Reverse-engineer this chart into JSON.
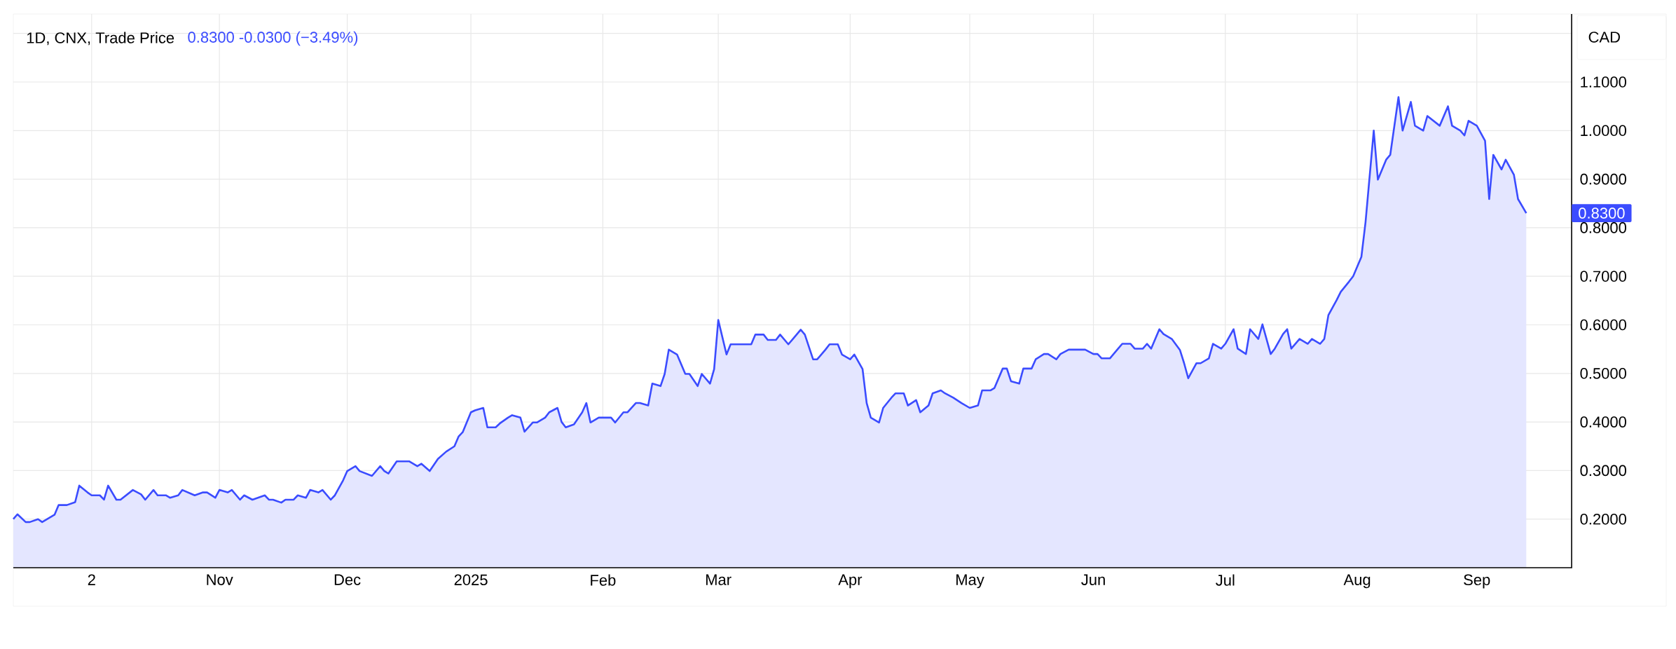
{
  "chart_data": {
    "type": "area",
    "title": "1D, CNX, Trade Price",
    "subtitle": "0.8300  -0.0300 (−3.49%)",
    "annotations": [
      "CAD",
      "0.8300"
    ],
    "x": [
      "2024-09-12",
      "2024-09-13",
      "2024-09-15",
      "2024-09-16",
      "2024-09-18",
      "2024-09-19",
      "2024-09-22",
      "2024-09-23",
      "2024-09-25",
      "2024-09-27",
      "2024-09-28",
      "2024-09-30",
      "2024-10-01",
      "2024-10-03",
      "2024-10-04",
      "2024-10-05",
      "2024-10-07",
      "2024-10-08",
      "2024-10-11",
      "2024-10-13",
      "2024-10-14",
      "2024-10-16",
      "2024-10-17",
      "2024-10-19",
      "2024-10-20",
      "2024-10-22",
      "2024-10-23",
      "2024-10-26",
      "2024-10-28",
      "2024-10-29",
      "2024-10-31",
      "2024-11-01",
      "2024-11-03",
      "2024-11-04",
      "2024-11-06",
      "2024-11-07",
      "2024-11-09",
      "2024-11-12",
      "2024-11-13",
      "2024-11-14",
      "2024-11-16",
      "2024-11-17",
      "2024-11-19",
      "2024-11-20",
      "2024-11-22",
      "2024-11-23",
      "2024-11-25",
      "2024-11-26",
      "2024-11-28",
      "2024-11-29",
      "2024-12-01",
      "2024-12-02",
      "2024-12-04",
      "2024-12-05",
      "2024-12-08",
      "2024-12-10",
      "2024-12-11",
      "2024-12-12",
      "2024-12-14",
      "2024-12-17",
      "2024-12-19",
      "2024-12-20",
      "2024-12-22",
      "2024-12-24",
      "2024-12-26",
      "2024-12-28",
      "2024-12-29",
      "2024-12-30",
      "2025-01-01",
      "2025-01-02",
      "2025-01-04",
      "2025-01-05",
      "2025-01-07",
      "2025-01-08",
      "2025-01-10",
      "2025-01-11",
      "2025-01-13",
      "2025-01-14",
      "2025-01-16",
      "2025-01-17",
      "2025-01-19",
      "2025-01-20",
      "2025-01-22",
      "2025-01-23",
      "2025-01-24",
      "2025-01-26",
      "2025-01-28",
      "2025-01-29",
      "2025-01-30",
      "2025-02-01",
      "2025-02-04",
      "2025-02-05",
      "2025-02-07",
      "2025-02-08",
      "2025-02-10",
      "2025-02-11",
      "2025-02-13",
      "2025-02-14",
      "2025-02-16",
      "2025-02-17",
      "2025-02-18",
      "2025-02-20",
      "2025-02-22",
      "2025-02-23",
      "2025-02-25",
      "2025-02-26",
      "2025-02-28",
      "2025-03-01",
      "2025-03-02",
      "2025-03-04",
      "2025-03-05",
      "2025-03-10",
      "2025-03-11",
      "2025-03-13",
      "2025-03-14",
      "2025-03-16",
      "2025-03-17",
      "2025-03-19",
      "2025-03-20",
      "2025-03-22",
      "2025-03-23",
      "2025-03-25",
      "2025-03-26",
      "2025-03-28",
      "2025-03-29",
      "2025-03-31",
      "2025-04-01",
      "2025-04-03",
      "2025-04-04",
      "2025-04-06",
      "2025-04-07",
      "2025-04-08",
      "2025-04-10",
      "2025-04-11",
      "2025-04-13",
      "2025-04-14",
      "2025-04-16",
      "2025-04-17",
      "2025-04-19",
      "2025-04-20",
      "2025-04-22",
      "2025-04-23",
      "2025-04-25",
      "2025-04-26",
      "2025-04-28",
      "2025-04-30",
      "2025-05-02",
      "2025-05-04",
      "2025-05-05",
      "2025-05-07",
      "2025-05-08",
      "2025-05-10",
      "2025-05-11",
      "2025-05-12",
      "2025-05-14",
      "2025-05-15",
      "2025-05-17",
      "2025-05-18",
      "2025-05-20",
      "2025-05-21",
      "2025-05-23",
      "2025-05-24",
      "2025-05-26",
      "2025-05-30",
      "2025-06-01",
      "2025-06-02",
      "2025-06-03",
      "2025-06-05",
      "2025-06-07",
      "2025-06-08",
      "2025-06-10",
      "2025-06-11",
      "2025-06-13",
      "2025-06-14",
      "2025-06-15",
      "2025-06-17",
      "2025-06-18",
      "2025-06-20",
      "2025-06-22",
      "2025-06-23",
      "2025-06-24",
      "2025-06-26",
      "2025-06-27",
      "2025-06-29",
      "2025-06-30",
      "2025-07-02",
      "2025-07-03",
      "2025-07-05",
      "2025-07-06",
      "2025-07-08",
      "2025-07-09",
      "2025-07-11",
      "2025-07-12",
      "2025-07-14",
      "2025-07-15",
      "2025-07-17",
      "2025-07-18",
      "2025-07-19",
      "2025-07-21",
      "2025-07-23",
      "2025-07-24",
      "2025-07-26",
      "2025-07-27",
      "2025-07-28",
      "2025-07-30",
      "2025-07-31",
      "2025-08-02",
      "2025-08-03",
      "2025-08-05",
      "2025-08-06",
      "2025-08-08",
      "2025-08-09",
      "2025-08-11",
      "2025-08-12",
      "2025-08-14",
      "2025-08-15",
      "2025-08-17",
      "2025-08-18",
      "2025-08-20",
      "2025-08-21",
      "2025-08-24",
      "2025-08-26",
      "2025-08-27",
      "2025-08-29",
      "2025-08-30",
      "2025-08-31",
      "2025-09-02",
      "2025-09-04",
      "2025-09-05",
      "2025-09-06",
      "2025-09-08",
      "2025-09-09",
      "2025-09-11",
      "2025-09-12",
      "2025-09-14"
    ],
    "values": [
      0.2,
      0.21,
      0.194,
      0.194,
      0.2,
      0.194,
      0.209,
      0.229,
      0.229,
      0.235,
      0.269,
      0.255,
      0.249,
      0.249,
      0.24,
      0.269,
      0.24,
      0.24,
      0.26,
      0.251,
      0.24,
      0.26,
      0.249,
      0.249,
      0.244,
      0.249,
      0.26,
      0.249,
      0.255,
      0.255,
      0.244,
      0.26,
      0.255,
      0.26,
      0.24,
      0.249,
      0.24,
      0.249,
      0.24,
      0.24,
      0.234,
      0.24,
      0.24,
      0.249,
      0.244,
      0.26,
      0.255,
      0.26,
      0.24,
      0.249,
      0.28,
      0.299,
      0.309,
      0.299,
      0.289,
      0.309,
      0.299,
      0.294,
      0.319,
      0.319,
      0.309,
      0.314,
      0.299,
      0.324,
      0.339,
      0.35,
      0.37,
      0.379,
      0.42,
      0.424,
      0.429,
      0.389,
      0.389,
      0.397,
      0.409,
      0.414,
      0.409,
      0.38,
      0.399,
      0.399,
      0.409,
      0.42,
      0.429,
      0.4,
      0.389,
      0.395,
      0.42,
      0.439,
      0.399,
      0.409,
      0.409,
      0.399,
      0.42,
      0.42,
      0.439,
      0.439,
      0.434,
      0.479,
      0.474,
      0.499,
      0.549,
      0.539,
      0.499,
      0.499,
      0.474,
      0.499,
      0.479,
      0.509,
      0.61,
      0.539,
      0.56,
      0.56,
      0.58,
      0.58,
      0.569,
      0.569,
      0.58,
      0.56,
      0.57,
      0.59,
      0.58,
      0.529,
      0.529,
      0.549,
      0.56,
      0.56,
      0.539,
      0.529,
      0.539,
      0.509,
      0.439,
      0.409,
      0.399,
      0.429,
      0.45,
      0.459,
      0.459,
      0.434,
      0.445,
      0.42,
      0.434,
      0.459,
      0.465,
      0.459,
      0.45,
      0.439,
      0.429,
      0.434,
      0.465,
      0.465,
      0.47,
      0.51,
      0.51,
      0.484,
      0.479,
      0.51,
      0.51,
      0.529,
      0.54,
      0.54,
      0.529,
      0.54,
      0.549,
      0.549,
      0.54,
      0.54,
      0.531,
      0.531,
      0.551,
      0.561,
      0.561,
      0.551,
      0.551,
      0.561,
      0.551,
      0.591,
      0.581,
      0.571,
      0.548,
      0.521,
      0.49,
      0.521,
      0.521,
      0.531,
      0.561,
      0.551,
      0.561,
      0.591,
      0.551,
      0.54,
      0.591,
      0.571,
      0.601,
      0.54,
      0.551,
      0.581,
      0.591,
      0.551,
      0.571,
      0.561,
      0.571,
      0.561,
      0.571,
      0.62,
      0.651,
      0.668,
      0.689,
      0.7,
      0.74,
      0.811,
      1.0,
      0.899,
      0.94,
      0.95,
      1.069,
      1.0,
      1.059,
      1.01,
      1.0,
      1.03,
      1.01,
      1.05,
      1.01,
      1.0,
      0.99,
      1.02,
      1.01,
      0.979,
      0.859,
      0.95,
      0.92,
      0.94,
      0.909,
      0.859,
      0.83
    ],
    "color": "#3b4cff",
    "xlim": [
      "2024-09-12",
      "2025-09-25"
    ],
    "xticks": [
      {
        "value": "2024-10-01",
        "label": "2"
      },
      {
        "value": "2024-11-01",
        "label": "Nov"
      },
      {
        "value": "2024-12-02",
        "label": "Dec"
      },
      {
        "value": "2025-01-01",
        "label": "2025"
      },
      {
        "value": "2025-02-02",
        "label": "Feb"
      },
      {
        "value": "2025-03-02",
        "label": "Mar"
      },
      {
        "value": "2025-04-03",
        "label": "Apr"
      },
      {
        "value": "2025-05-02",
        "label": "May"
      },
      {
        "value": "2025-06-01",
        "label": "Jun"
      },
      {
        "value": "2025-07-03",
        "label": "Jul"
      },
      {
        "value": "2025-08-04",
        "label": "Aug"
      },
      {
        "value": "2025-09-02",
        "label": "Sep"
      }
    ],
    "ylim": [
      0.1,
      1.24
    ],
    "yticks": [
      {
        "value": 0.2,
        "label": "0.2000"
      },
      {
        "value": 0.3,
        "label": "0.3000"
      },
      {
        "value": 0.4,
        "label": "0.4000"
      },
      {
        "value": 0.5,
        "label": "0.5000"
      },
      {
        "value": 0.6,
        "label": "0.6000"
      },
      {
        "value": 0.7,
        "label": "0.7000"
      },
      {
        "value": 0.8,
        "label": "0.8000"
      },
      {
        "value": 0.9,
        "label": "0.9000"
      },
      {
        "value": 1.0,
        "label": "1.0000"
      },
      {
        "value": 1.1,
        "label": "1.1000"
      },
      {
        "value": 1.2,
        "label": null
      }
    ],
    "grid": true
  }
}
